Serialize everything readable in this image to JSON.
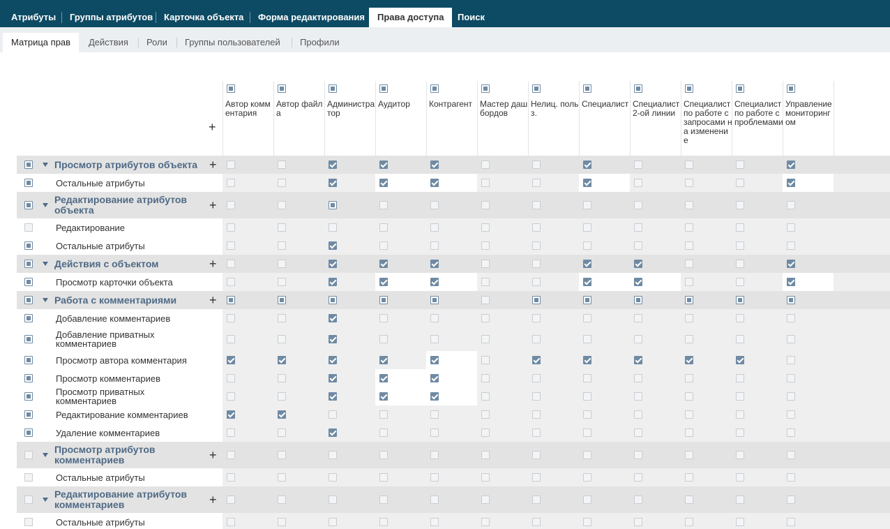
{
  "top_tabs": [
    "Атрибуты",
    "Группы атрибутов",
    "Карточка объекта",
    "Форма редактирования",
    "Права доступа",
    "Поиск"
  ],
  "sub_tabs": [
    "Матрица прав",
    "Действия",
    "Роли",
    "Группы пользователей",
    "Профили"
  ],
  "columns": [
    "Автор комментария",
    "Автор файла",
    "Администратор",
    "Аудитор",
    "Контрагент",
    "Мастер дашбордов",
    "Нелиц. польз.",
    "Специалист",
    "Специалист 2-ой линии",
    "Специалист по работе с запросами на изменение",
    "Специалист по работе с проблемами",
    "Управление мониторингом"
  ],
  "add_symbol": "+",
  "rows": [
    {
      "type": "group",
      "label": "Просмотр атрибутов объекта",
      "check": "part",
      "cells": "..on.on.on...on....on",
      "white": ""
    },
    {
      "type": "item",
      "label": "Остальные атрибуты",
      "check": "part",
      "cells": "..on.on.on...on....on",
      "white": "3,4,7,11"
    },
    {
      "type": "group",
      "label": "Редактирование атрибутов объекта",
      "check": "part",
      "cells": "..part.........",
      "white": ""
    },
    {
      "type": "item",
      "label": "Редактирование",
      "check": "off",
      "cells": "",
      "white": ""
    },
    {
      "type": "item",
      "label": "Остальные атрибуты",
      "check": "part",
      "cells": "..on",
      "white": ""
    },
    {
      "type": "group",
      "label": "Действия с объектом",
      "check": "part",
      "cells": "..on.on.on...on.on...on",
      "white": ""
    },
    {
      "type": "item",
      "label": "Просмотр карточки объекта",
      "check": "part",
      "cells": "..on.on.on...on.on...on",
      "white": "3,4,7,8,11"
    },
    {
      "type": "group",
      "label": "Работа с комментариями",
      "check": "part",
      "cells": "part.part.part.part.part..part.part.part.part.part.part",
      "white": ""
    },
    {
      "type": "item",
      "label": "Добавление комментариев",
      "check": "part",
      "cells": "..on",
      "white": ""
    },
    {
      "type": "item",
      "label": "Добавление приватных комментариев",
      "check": "part",
      "cells": "..on",
      "white": ""
    },
    {
      "type": "item",
      "label": "Просмотр автора комментария",
      "check": "part",
      "cells": "on.on.on.on.on..on.on.on.on.on",
      "white": "4"
    },
    {
      "type": "item",
      "label": "Просмотр комментариев",
      "check": "part",
      "cells": "..on.on.on",
      "white": "3,4"
    },
    {
      "type": "item",
      "label": "Просмотр приватных комментариев",
      "check": "part",
      "cells": "..on.on.on",
      "white": "3,4"
    },
    {
      "type": "item",
      "label": "Редактирование комментариев",
      "check": "part",
      "cells": "on.on",
      "white": ""
    },
    {
      "type": "item",
      "label": "Удаление комментариев",
      "check": "part",
      "cells": "..on",
      "white": ""
    },
    {
      "type": "group",
      "label": "Просмотр атрибутов комментариев",
      "check": "off",
      "cells": "",
      "white": ""
    },
    {
      "type": "item",
      "label": "Остальные атрибуты",
      "check": "off",
      "cells": "",
      "white": ""
    },
    {
      "type": "group",
      "label": "Редактирование атрибутов комментариев",
      "check": "off",
      "cells": "",
      "white": ""
    },
    {
      "type": "item",
      "label": "Остальные атрибуты",
      "check": "off",
      "cells": "",
      "white": ""
    }
  ]
}
